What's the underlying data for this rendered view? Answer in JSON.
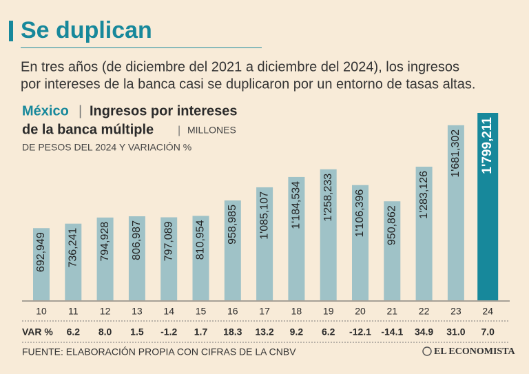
{
  "header": {
    "title": "Se duplican",
    "subtitle_lines": [
      "En tres años (de diciembre del 2021 a diciembre del 2024), los ingresos",
      "por intereses de la banca casi se duplicaron por un entorno de tasas altas."
    ]
  },
  "chart_data": {
    "type": "bar",
    "region": "México",
    "title_lines": [
      "Ingresos por intereses",
      "de la banca múltiple"
    ],
    "unit_lines": [
      "MILLONES",
      "DE PESOS DEL 2024 Y VARIACIÓN %"
    ],
    "categories": [
      "10",
      "11",
      "12",
      "13",
      "14",
      "15",
      "16",
      "17",
      "18",
      "19",
      "20",
      "21",
      "22",
      "23",
      "24"
    ],
    "values": [
      692949,
      736241,
      794928,
      806987,
      797089,
      810954,
      958985,
      1085107,
      1184534,
      1258233,
      1106396,
      950862,
      1283126,
      1681302,
      1799211
    ],
    "value_labels": [
      "692,949",
      "736,241",
      "794,928",
      "806,987",
      "797,089",
      "810,954",
      "958,985",
      "1'085,107",
      "1'184,534",
      "1'258,233",
      "1'106,396",
      "950,862",
      "1'283,126",
      "1'681,302",
      "1'799,211"
    ],
    "color": "#9fc2c7",
    "highlight_color": "#17889b",
    "variation": {
      "label": "VAR %",
      "values": [
        null,
        6.2,
        8.0,
        1.5,
        -1.2,
        1.7,
        18.3,
        13.2,
        9.2,
        6.2,
        -12.1,
        -14.1,
        34.9,
        31.0,
        7.0
      ],
      "value_labels": [
        null,
        "6.2",
        "8.0",
        "1.5",
        "-1.2",
        "1.7",
        "18.3",
        "13.2",
        "9.2",
        "6.2",
        "-12.1",
        "-14.1",
        "34.9",
        "31.0",
        "7.0"
      ]
    }
  },
  "footer": {
    "source": "FUENTE: ELABORACIÓN PROPIA CON CIFRAS DE LA CNBV",
    "logo": "EL ECONOMISTA"
  }
}
